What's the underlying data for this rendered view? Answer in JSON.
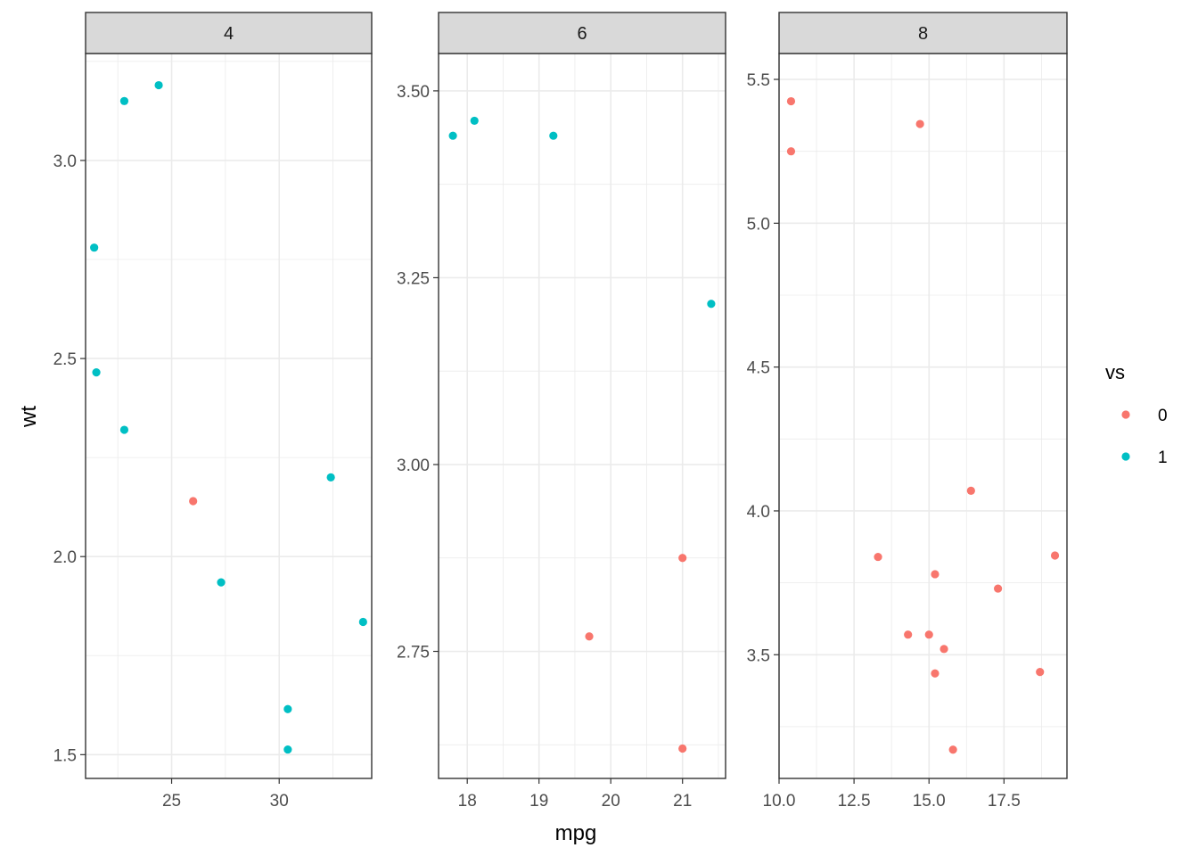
{
  "chart_data": {
    "type": "scatter",
    "xlabel": "mpg",
    "ylabel": "wt",
    "grid": true,
    "facet_by": "cyl",
    "legend": {
      "title": "vs",
      "position": "right",
      "entries": [
        {
          "label": "0",
          "color": "#F8766D"
        },
        {
          "label": "1",
          "color": "#00BFC4"
        }
      ]
    },
    "panels": [
      {
        "strip": "4",
        "xlim": [
          21.0,
          34.3
        ],
        "ylim": [
          1.44,
          3.27
        ],
        "xticks": [
          25,
          30
        ],
        "xtick_labels": [
          "25",
          "30"
        ],
        "yticks": [
          1.5,
          2.0,
          2.5,
          3.0
        ],
        "ytick_labels": [
          "1.5",
          "2.0",
          "2.5",
          "3.0"
        ],
        "points": [
          {
            "x": 22.8,
            "y": 2.32,
            "vs": "1"
          },
          {
            "x": 24.4,
            "y": 3.19,
            "vs": "1"
          },
          {
            "x": 22.8,
            "y": 3.15,
            "vs": "1"
          },
          {
            "x": 32.4,
            "y": 2.2,
            "vs": "1"
          },
          {
            "x": 30.4,
            "y": 1.615,
            "vs": "1"
          },
          {
            "x": 33.9,
            "y": 1.835,
            "vs": "1"
          },
          {
            "x": 21.5,
            "y": 2.465,
            "vs": "1"
          },
          {
            "x": 27.3,
            "y": 1.935,
            "vs": "1"
          },
          {
            "x": 26.0,
            "y": 2.14,
            "vs": "0"
          },
          {
            "x": 30.4,
            "y": 1.513,
            "vs": "1"
          },
          {
            "x": 21.4,
            "y": 2.78,
            "vs": "1"
          }
        ]
      },
      {
        "strip": "6",
        "xlim": [
          17.6,
          21.6
        ],
        "ylim": [
          2.58,
          3.55
        ],
        "xticks": [
          18,
          19,
          20,
          21
        ],
        "xtick_labels": [
          "18",
          "19",
          "20",
          "21"
        ],
        "yticks": [
          2.75,
          3.0,
          3.25,
          3.5
        ],
        "ytick_labels": [
          "2.75",
          "3.00",
          "3.25",
          "3.50"
        ],
        "points": [
          {
            "x": 21.0,
            "y": 2.62,
            "vs": "0"
          },
          {
            "x": 21.0,
            "y": 2.875,
            "vs": "0"
          },
          {
            "x": 21.4,
            "y": 3.215,
            "vs": "1"
          },
          {
            "x": 18.1,
            "y": 3.46,
            "vs": "1"
          },
          {
            "x": 19.2,
            "y": 3.44,
            "vs": "1"
          },
          {
            "x": 17.8,
            "y": 3.44,
            "vs": "1"
          },
          {
            "x": 19.7,
            "y": 2.77,
            "vs": "0"
          }
        ]
      },
      {
        "strip": "8",
        "xlim": [
          10.0,
          19.6
        ],
        "ylim": [
          3.07,
          5.59
        ],
        "xticks": [
          10.0,
          12.5,
          15.0,
          17.5
        ],
        "xtick_labels": [
          "10.0",
          "12.5",
          "15.0",
          "17.5"
        ],
        "yticks": [
          3.5,
          4.0,
          4.5,
          5.0,
          5.5
        ],
        "ytick_labels": [
          "3.5",
          "4.0",
          "4.5",
          "5.0",
          "5.5"
        ],
        "points": [
          {
            "x": 18.7,
            "y": 3.44,
            "vs": "0"
          },
          {
            "x": 14.3,
            "y": 3.57,
            "vs": "0"
          },
          {
            "x": 16.4,
            "y": 4.07,
            "vs": "0"
          },
          {
            "x": 17.3,
            "y": 3.73,
            "vs": "0"
          },
          {
            "x": 15.2,
            "y": 3.78,
            "vs": "0"
          },
          {
            "x": 10.4,
            "y": 5.25,
            "vs": "0"
          },
          {
            "x": 10.4,
            "y": 5.424,
            "vs": "0"
          },
          {
            "x": 14.7,
            "y": 5.345,
            "vs": "0"
          },
          {
            "x": 15.5,
            "y": 3.52,
            "vs": "0"
          },
          {
            "x": 15.2,
            "y": 3.435,
            "vs": "0"
          },
          {
            "x": 13.3,
            "y": 3.84,
            "vs": "0"
          },
          {
            "x": 19.2,
            "y": 3.845,
            "vs": "0"
          },
          {
            "x": 15.8,
            "y": 3.17,
            "vs": "0"
          },
          {
            "x": 15.0,
            "y": 3.57,
            "vs": "0"
          }
        ]
      }
    ]
  }
}
